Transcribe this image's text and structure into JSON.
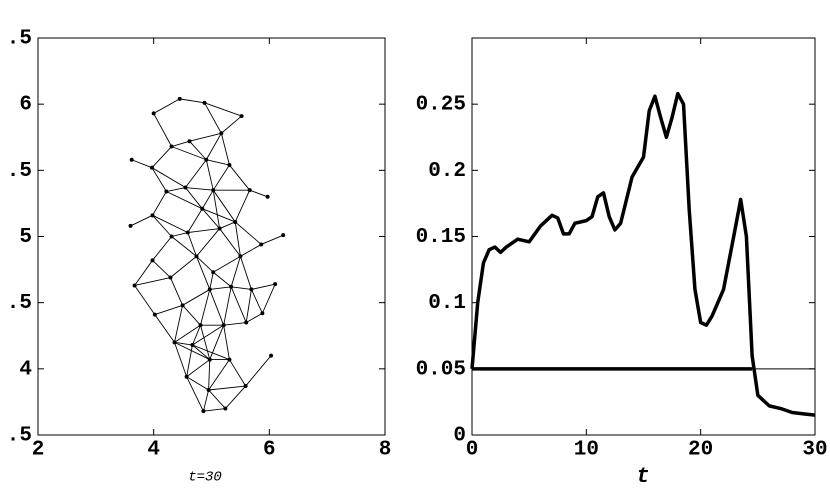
{
  "chart_data": [
    {
      "type": "mesh",
      "caption": "t=30",
      "xlim": [
        2,
        8
      ],
      "xticks": [
        2,
        4,
        6,
        8
      ],
      "ylim": [
        3.5,
        6.5
      ],
      "yticks": [
        {
          "value": 3.5,
          "label": ".5"
        },
        4,
        {
          "value": 4.5,
          "label": ".5"
        },
        5,
        {
          "value": 5.5,
          "label": ".5"
        },
        6,
        {
          "value": 6.5,
          "label": ".5"
        }
      ],
      "color": "#000000",
      "nodes": [
        [
          4.0,
          5.93
        ],
        [
          4.45,
          6.04
        ],
        [
          4.88,
          6.01
        ],
        [
          5.52,
          5.91
        ],
        [
          4.31,
          5.68
        ],
        [
          4.62,
          5.72
        ],
        [
          5.17,
          5.78
        ],
        [
          3.62,
          5.58
        ],
        [
          3.97,
          5.52
        ],
        [
          4.91,
          5.58
        ],
        [
          5.31,
          5.54
        ],
        [
          4.55,
          5.37
        ],
        [
          5.03,
          5.35
        ],
        [
          5.66,
          5.35
        ],
        [
          4.22,
          5.34
        ],
        [
          3.98,
          5.16
        ],
        [
          4.84,
          5.21
        ],
        [
          5.41,
          5.11
        ],
        [
          5.97,
          5.3
        ],
        [
          3.6,
          5.08
        ],
        [
          4.31,
          5.0
        ],
        [
          4.59,
          5.03
        ],
        [
          5.14,
          5.06
        ],
        [
          6.24,
          5.01
        ],
        [
          5.86,
          4.94
        ],
        [
          3.98,
          4.82
        ],
        [
          4.74,
          4.85
        ],
        [
          5.5,
          4.85
        ],
        [
          4.29,
          4.69
        ],
        [
          5.03,
          4.73
        ],
        [
          6.1,
          4.64
        ],
        [
          5.34,
          4.62
        ],
        [
          5.69,
          4.6
        ],
        [
          3.67,
          4.63
        ],
        [
          4.5,
          4.48
        ],
        [
          4.97,
          4.6
        ],
        [
          4.02,
          4.41
        ],
        [
          4.81,
          4.33
        ],
        [
          5.21,
          4.33
        ],
        [
          5.6,
          4.35
        ],
        [
          5.88,
          4.42
        ],
        [
          4.36,
          4.2
        ],
        [
          4.67,
          4.18
        ],
        [
          5.31,
          4.07
        ],
        [
          4.97,
          4.07
        ],
        [
          4.57,
          3.94
        ],
        [
          5.59,
          3.87
        ],
        [
          6.03,
          4.1
        ],
        [
          4.95,
          3.84
        ],
        [
          4.86,
          3.68
        ],
        [
          5.24,
          3.7
        ]
      ]
    },
    {
      "type": "line",
      "xlabel": "t",
      "xlim": [
        0,
        30
      ],
      "xticks": [
        0,
        10,
        20,
        30
      ],
      "ylim": [
        0,
        0.3
      ],
      "yticks": [
        0,
        0.05,
        0.1,
        0.15,
        0.2,
        0.25
      ],
      "hline": 0.05,
      "series": [
        {
          "color": "#000000",
          "x": [
            0,
            0.5,
            1,
            1.5,
            2,
            2.5,
            3,
            4,
            5,
            6,
            7,
            7.5,
            8,
            8.5,
            9,
            10,
            10.5,
            11,
            11.5,
            12,
            12.5,
            13,
            14,
            15,
            15.5,
            16,
            16.5,
            17,
            17.5,
            18,
            18.5,
            19,
            19.5,
            20,
            20.5,
            21,
            22,
            23,
            23.5,
            24,
            24.5,
            25,
            26,
            27,
            28,
            29,
            30
          ],
          "values": [
            0.05,
            0.1,
            0.13,
            0.14,
            0.142,
            0.138,
            0.142,
            0.148,
            0.146,
            0.158,
            0.166,
            0.164,
            0.152,
            0.152,
            0.16,
            0.162,
            0.165,
            0.18,
            0.183,
            0.165,
            0.155,
            0.16,
            0.195,
            0.21,
            0.245,
            0.256,
            0.24,
            0.225,
            0.24,
            0.258,
            0.25,
            0.17,
            0.11,
            0.085,
            0.083,
            0.09,
            0.11,
            0.155,
            0.178,
            0.15,
            0.06,
            0.03,
            0.022,
            0.02,
            0.017,
            0.016,
            0.015
          ]
        },
        {
          "color": "#000000",
          "x": [
            0,
            24.5
          ],
          "values": [
            0.05,
            0.05
          ]
        }
      ]
    }
  ]
}
